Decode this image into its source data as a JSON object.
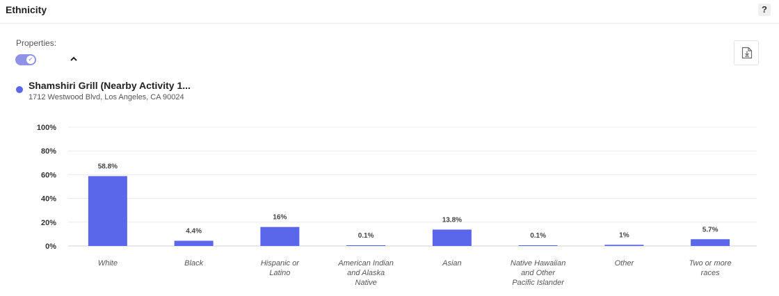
{
  "header": {
    "title": "Ethnicity",
    "help_label": "?"
  },
  "properties": {
    "label": "Properties:",
    "toggle_on": true
  },
  "legend": {
    "name": "Shamshiri Grill (Nearby Activity 1...",
    "address": "1712 Westwood Blvd, Los Angeles, CA 90024"
  },
  "colors": {
    "accent": "#5b67ea",
    "toggle": "#8f93e8"
  },
  "chart_data": {
    "type": "bar",
    "categories": [
      "White",
      "Black",
      "Hispanic or Latino",
      "American Indian and Alaska Native",
      "Asian",
      "Native Hawaiian and Other Pacific Islander",
      "Other",
      "Two or more races"
    ],
    "category_lines": [
      [
        "White"
      ],
      [
        "Black"
      ],
      [
        "Hispanic or",
        "Latino"
      ],
      [
        "American Indian",
        "and Alaska",
        "Native"
      ],
      [
        "Asian"
      ],
      [
        "Native Hawaiian",
        "and Other",
        "Pacific Islander"
      ],
      [
        "Other"
      ],
      [
        "Two or more",
        "races"
      ]
    ],
    "series": [
      {
        "name": "Shamshiri Grill (Nearby Activity 1...",
        "values": [
          58.8,
          4.4,
          16,
          0.1,
          13.8,
          0.1,
          1,
          5.7
        ]
      }
    ],
    "data_labels": [
      "58.8%",
      "4.4%",
      "16%",
      "0.1%",
      "13.8%",
      "0.1%",
      "1%",
      "5.7%"
    ],
    "ylim": [
      0,
      100
    ],
    "yticks": [
      0,
      20,
      40,
      60,
      80,
      100
    ],
    "ytick_labels": [
      "0%",
      "20%",
      "40%",
      "60%",
      "80%",
      "100%"
    ],
    "grid": true,
    "legend_position": "top-left"
  }
}
